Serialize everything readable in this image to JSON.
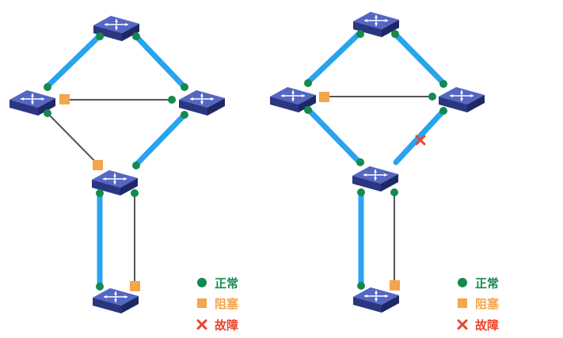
{
  "colors": {
    "active_link": "#29a3f0",
    "blocked_link": "#555555",
    "normal": "#138a4f",
    "blocked": "#f5a54a",
    "fault": "#e8452c",
    "switch_top": "#3c4fa8",
    "switch_side": "#232e72",
    "switch_face": "#5566c4"
  },
  "switch_label": "SWITCH",
  "legend_left": {
    "normal": "正常",
    "blocked": "阻塞",
    "fault": "故障"
  },
  "legend_right": {
    "normal": "正常",
    "blocked": "阻塞",
    "fault": "故障"
  },
  "icons": {
    "normal": "green-dot-icon",
    "blocked": "orange-square-icon",
    "fault": "red-x-icon"
  }
}
